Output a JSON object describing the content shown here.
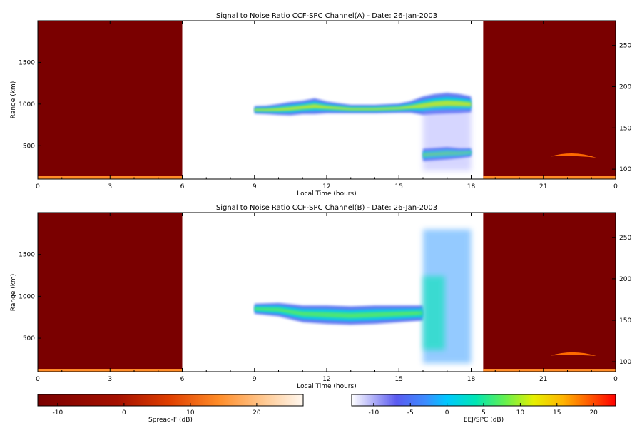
{
  "chart_data": [
    {
      "type": "heatmap",
      "title": "Signal to Noise Ratio CCF-SPC Channel(A) - Date: 26-Jan-2003",
      "xlabel": "Local Time (hours)",
      "ylabel": "Range (km)",
      "x_ticks": [
        "0",
        "3",
        "6",
        "9",
        "12",
        "15",
        "18",
        "21",
        "0"
      ],
      "y_ticks": [
        "500",
        "1000",
        "1500"
      ],
      "y2_ticks": [
        "100",
        "150",
        "200",
        "250"
      ],
      "xlim": [
        0,
        24
      ],
      "ylim": [
        100,
        2000
      ],
      "y2lim": [
        88,
        280
      ],
      "regions": [
        {
          "name": "Spread-F",
          "x_range": [
            0,
            6
          ],
          "colormap": "spreadf"
        },
        {
          "name": "EEJ/SPC",
          "x_range": [
            6,
            18.5
          ],
          "colormap": "eej"
        },
        {
          "name": "Spread-F",
          "x_range": [
            18.5,
            24
          ],
          "colormap": "spreadf"
        }
      ],
      "features": [
        {
          "kind": "echo_band",
          "x": [
            9.0,
            9.5,
            10.0,
            10.5,
            11.0,
            11.5,
            12.0,
            12.5,
            13.0,
            14.0,
            15.0,
            15.5,
            16.0,
            16.5,
            17.0,
            17.5,
            18.0
          ],
          "y_center": [
            930,
            930,
            935,
            945,
            960,
            975,
            960,
            950,
            940,
            940,
            950,
            965,
            980,
            1000,
            1010,
            1005,
            995
          ],
          "y_halfwidth": [
            45,
            50,
            65,
            80,
            80,
            95,
            70,
            60,
            50,
            50,
            55,
            70,
            110,
            120,
            125,
            115,
            95
          ],
          "peak_db": 9
        },
        {
          "kind": "echo_band",
          "x": [
            16.0,
            16.5,
            17.0,
            17.5,
            18.0
          ],
          "y_center": [
            390,
            400,
            410,
            410,
            420
          ],
          "y_halfwidth": [
            75,
            75,
            75,
            60,
            50
          ],
          "peak_db": 5
        },
        {
          "kind": "echo_patch",
          "x_range": [
            16.0,
            18.0
          ],
          "y_range": [
            200,
            950
          ],
          "peak_db": -10
        },
        {
          "kind": "spreadf_band",
          "x_range": [
            21.3,
            23.2
          ],
          "y2_center": [
            118,
            115
          ],
          "y2_halfwidth": 2.5,
          "peak_db": 18
        }
      ]
    },
    {
      "type": "heatmap",
      "title": "Signal to Noise Ratio CCF-SPC Channel(B) - Date: 26-Jan-2003",
      "xlabel": "Local Time (hours)",
      "ylabel": "Range (km)",
      "x_ticks": [
        "0",
        "3",
        "6",
        "9",
        "12",
        "15",
        "18",
        "21",
        "0"
      ],
      "y_ticks": [
        "500",
        "1000",
        "1500"
      ],
      "y2_ticks": [
        "100",
        "150",
        "200",
        "250"
      ],
      "xlim": [
        0,
        24
      ],
      "ylim": [
        100,
        2000
      ],
      "y2lim": [
        88,
        280
      ],
      "regions": [
        {
          "name": "Spread-F",
          "x_range": [
            0,
            6
          ],
          "colormap": "spreadf"
        },
        {
          "name": "EEJ/SPC",
          "x_range": [
            6,
            18.5
          ],
          "colormap": "eej"
        },
        {
          "name": "Spread-F",
          "x_range": [
            18.5,
            24
          ],
          "colormap": "spreadf"
        }
      ],
      "features": [
        {
          "kind": "echo_band",
          "x": [
            9.0,
            10.0,
            11.0,
            12.0,
            13.0,
            14.0,
            15.0,
            16.0
          ],
          "y_center": [
            850,
            840,
            790,
            780,
            770,
            780,
            790,
            800
          ],
          "y_halfwidth": [
            60,
            80,
            100,
            110,
            110,
            110,
            100,
            90
          ],
          "peak_db": 6
        },
        {
          "kind": "echo_patch",
          "x_range": [
            16.0,
            18.0
          ],
          "y_range": [
            200,
            1800
          ],
          "peak_db": 2
        },
        {
          "kind": "spreadf_band",
          "x_range": [
            21.3,
            23.2
          ],
          "y2_center": [
            110,
            108
          ],
          "y2_halfwidth": 2.5,
          "peak_db": 18
        }
      ]
    }
  ],
  "colorbars": [
    {
      "label": "Spread-F (dB)",
      "ticks": [
        "-10",
        "0",
        "10",
        "20"
      ],
      "range": [
        -13,
        27
      ],
      "colormap": "spreadf"
    },
    {
      "label": "EEJ/SPC (dB)",
      "ticks": [
        "-10",
        "-5",
        "0",
        "5",
        "10",
        "15",
        "20"
      ],
      "range": [
        -13,
        23
      ],
      "colormap": "eej"
    }
  ],
  "colors": {
    "spreadf_background": "#7a0000",
    "spreadf_band": "#ff6a00",
    "eej_background": "#ffffff"
  }
}
